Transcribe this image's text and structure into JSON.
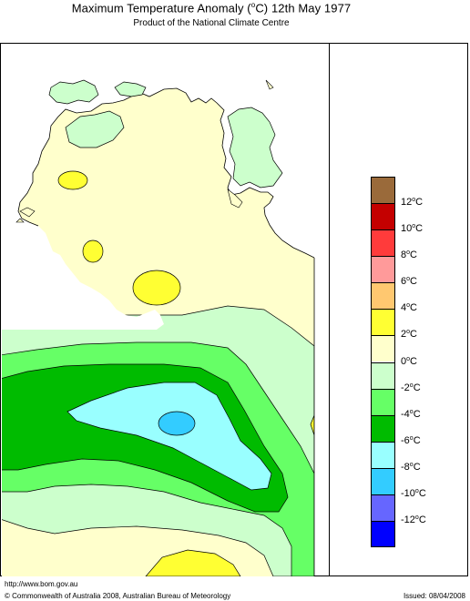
{
  "title": "Maximum Temperature Anomaly (",
  "title_degree": "o",
  "title_rest": "C)  12th May 1977",
  "subtitle": "Product of the National Climate Centre",
  "legend": {
    "colors": [
      "#9a6a3a",
      "#c40000",
      "#ff3b3b",
      "#ff9a9a",
      "#ffc870",
      "#ffff33",
      "#ffffcc",
      "#ccffcc",
      "#66ff66",
      "#00bb00",
      "#99ffff",
      "#33ccff",
      "#6666ff",
      "#0000ff"
    ],
    "labels": [
      "12",
      "10",
      "8",
      "6",
      "4",
      "2",
      "0",
      "-2",
      "-4",
      "-6",
      "-8",
      "-10",
      "-12"
    ],
    "unit": "C",
    "degree": "o"
  },
  "map": {
    "land_color": "#ffffcc",
    "positive_color": "#ffff33",
    "cool1_color": "#ccffcc",
    "cool2_color": "#66ff66",
    "cool3_color": "#00bb00",
    "cool4_color": "#99ffff",
    "cool5_color": "#33ccff"
  },
  "footer": {
    "url": "http://www.bom.gov.au",
    "copyright": "© Commonwealth of Australia 2008, Australian Bureau of Meteorology",
    "issued": "Issued: 08/04/2008"
  }
}
